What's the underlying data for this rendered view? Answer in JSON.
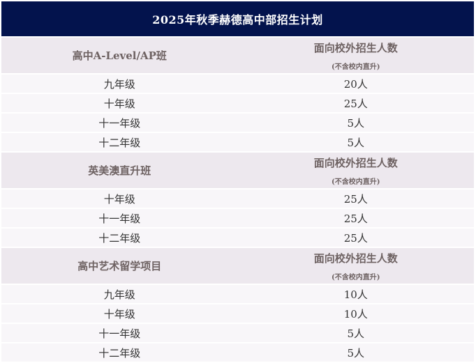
{
  "title": "2025年秋季赫德高中部招生计划",
  "sections": [
    {
      "name": "高中A-Level/AP班",
      "col_header": "面向校外招生人数",
      "col_note": "(不含校内直升)",
      "rows": [
        {
          "grade": "九年级",
          "count": "20人"
        },
        {
          "grade": "十年级",
          "count": "25人"
        },
        {
          "grade": "十一年级",
          "count": "5人"
        },
        {
          "grade": "十二年级",
          "count": "5人"
        }
      ]
    },
    {
      "name": "英美澳直升班",
      "col_header": "面向校外招生人数",
      "col_note": "(不含校内直升)",
      "rows": [
        {
          "grade": "十年级",
          "count": "25人"
        },
        {
          "grade": "十一年级",
          "count": "25人"
        },
        {
          "grade": "十二年级",
          "count": "25人"
        }
      ]
    },
    {
      "name": "高中艺术留学项目",
      "col_header": "面向校外招生人数",
      "col_note": "(不含校内直升)",
      "rows": [
        {
          "grade": "九年级",
          "count": "10人"
        },
        {
          "grade": "十年级",
          "count": "10人"
        },
        {
          "grade": "十一年级",
          "count": "5人"
        },
        {
          "grade": "十二年级",
          "count": "5人"
        }
      ]
    }
  ],
  "colors": {
    "title_bg": "#03134d",
    "header_bg": "#ede8ee",
    "row_bg": "#f8f6f9"
  }
}
